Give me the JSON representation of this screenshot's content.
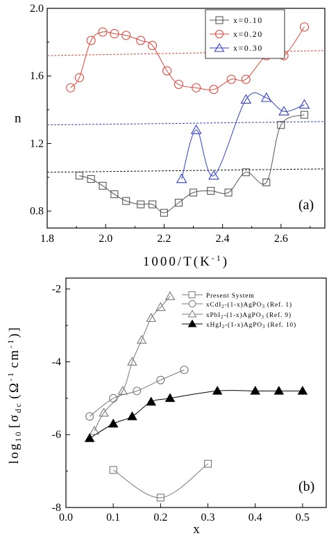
{
  "chart_data": [
    {
      "type": "scatter",
      "panel_label": "(a)",
      "xlabel_parts": [
        "1000/T(K",
        "-1",
        ")"
      ],
      "ylabel": "n",
      "xlim": [
        1.8,
        2.75
      ],
      "ylim": [
        0.7,
        2.0
      ],
      "xticks": [
        "1.8",
        "2.0",
        "2.2",
        "2.4",
        "2.6"
      ],
      "xtick_values": [
        1.8,
        2.0,
        2.2,
        2.4,
        2.6
      ],
      "yticks": [
        "0.8",
        "1.2",
        "1.6",
        "2.0"
      ],
      "ytick_values": [
        0.8,
        1.2,
        1.6,
        2.0
      ],
      "legend_position": "top-right",
      "series": [
        {
          "name": "x=0.10",
          "marker": "square",
          "color": "#555555",
          "x": [
            1.91,
            1.95,
            1.99,
            2.03,
            2.07,
            2.12,
            2.16,
            2.2,
            2.25,
            2.3,
            2.36,
            2.42,
            2.48,
            2.55,
            2.6,
            2.68
          ],
          "y": [
            1.01,
            0.99,
            0.95,
            0.9,
            0.86,
            0.84,
            0.84,
            0.79,
            0.85,
            0.91,
            0.92,
            0.91,
            1.03,
            0.97,
            1.31,
            1.37
          ],
          "trend_line": {
            "color": "#111111",
            "x": [
              1.8,
              2.75
            ],
            "y": [
              1.03,
              1.05
            ]
          }
        },
        {
          "name": "x=0.20",
          "marker": "circle",
          "color": "#e2463a",
          "x": [
            1.88,
            1.91,
            1.95,
            1.99,
            2.03,
            2.07,
            2.12,
            2.16,
            2.21,
            2.25,
            2.31,
            2.37,
            2.43,
            2.48,
            2.55,
            2.61,
            2.68
          ],
          "y": [
            1.53,
            1.59,
            1.81,
            1.86,
            1.85,
            1.84,
            1.81,
            1.78,
            1.63,
            1.55,
            1.53,
            1.52,
            1.58,
            1.58,
            1.72,
            1.72,
            1.89
          ],
          "trend_line": {
            "color": "#e2463a",
            "x": [
              1.8,
              2.75
            ],
            "y": [
              1.72,
              1.75
            ]
          }
        },
        {
          "name": "x=0.30",
          "marker": "triangle",
          "color": "#2f3fcf",
          "x": [
            2.26,
            2.31,
            2.37,
            2.48,
            2.55,
            2.61,
            2.68
          ],
          "y": [
            0.99,
            1.28,
            1.01,
            1.46,
            1.47,
            1.39,
            1.43
          ],
          "trend_line": {
            "color": "#2f3fcf",
            "x": [
              1.8,
              2.75
            ],
            "y": [
              1.31,
              1.33
            ]
          }
        }
      ]
    },
    {
      "type": "scatter",
      "panel_label": "(b)",
      "xlabel": "x",
      "ylabel_parts": [
        "log",
        "10",
        "[σ",
        "dc",
        "(Ω",
        "-1",
        "cm",
        "-1",
        ")]"
      ],
      "xlim": [
        0.0,
        0.55
      ],
      "ylim": [
        -8.0,
        -1.7
      ],
      "xticks": [
        "0.0",
        "0.1",
        "0.2",
        "0.3",
        "0.4",
        "0.5"
      ],
      "xtick_values": [
        0.0,
        0.1,
        0.2,
        0.3,
        0.4,
        0.5
      ],
      "yticks": [
        "-2",
        "-4",
        "-6",
        "-8"
      ],
      "ytick_values": [
        -2,
        -4,
        -6,
        -8
      ],
      "legend_position": "top-right",
      "series": [
        {
          "name": "Present System",
          "marker": "square",
          "color": "#777777",
          "x": [
            0.1,
            0.2,
            0.3
          ],
          "y": [
            -6.97,
            -7.73,
            -6.8
          ]
        },
        {
          "name": "xCdI2-(1-x)AgPO3 (Ref. 1)",
          "marker": "circle",
          "color": "#777777",
          "x": [
            0.05,
            0.1,
            0.15,
            0.2,
            0.25
          ],
          "y": [
            -5.5,
            -5.0,
            -4.8,
            -4.5,
            -4.22
          ]
        },
        {
          "name": "xPbI2-(1-x)AgPO3 (Ref. 9)",
          "marker": "triangle",
          "color": "#777777",
          "x": [
            0.06,
            0.08,
            0.12,
            0.14,
            0.16,
            0.18,
            0.2,
            0.22
          ],
          "y": [
            -5.9,
            -5.4,
            -4.8,
            -4.0,
            -3.4,
            -2.8,
            -2.5,
            -2.2
          ]
        },
        {
          "name": "xHgI2-(1-x)AgPO3 (Ref. 10)",
          "marker": "filled-triangle",
          "color": "#000000",
          "x": [
            0.05,
            0.1,
            0.14,
            0.18,
            0.22,
            0.32,
            0.4,
            0.45,
            0.5
          ],
          "y": [
            -6.1,
            -5.7,
            -5.5,
            -5.1,
            -5.0,
            -4.8,
            -4.8,
            -4.8,
            -4.8
          ]
        }
      ],
      "legend_labels": {
        "present": [
          "Present System"
        ],
        "cdi": [
          "xCdI",
          "2",
          "-(1-x)AgPO",
          "3",
          " (Ref. 1)"
        ],
        "pbi": [
          "xPbI",
          "2",
          "-(1-x)AgPO",
          "3",
          " (Ref. 9)"
        ],
        "hgi": [
          "xHgI",
          "2",
          "-(1-x)AgPO",
          "3",
          " (Ref. 10)"
        ]
      }
    }
  ]
}
